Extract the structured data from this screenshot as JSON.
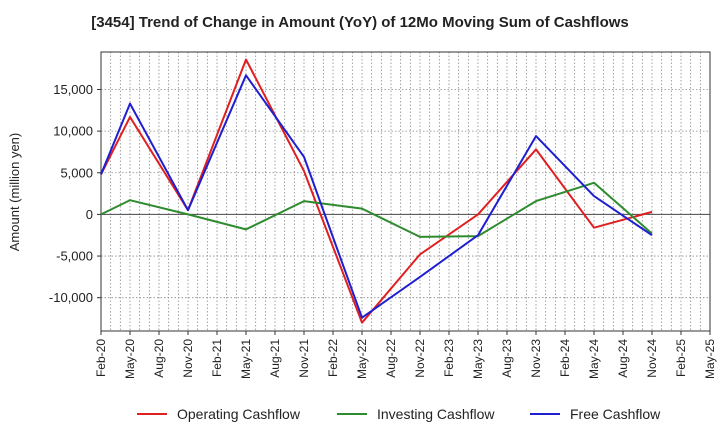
{
  "chart_data": {
    "type": "line",
    "title": "[3454]  Trend of Change in Amount (YoY) of 12Mo Moving Sum of Cashflows",
    "ylabel": "Amount (million yen)",
    "xlabel": "",
    "ylim": [
      -14000,
      19500
    ],
    "yticks": [
      -10000,
      -5000,
      0,
      5000,
      10000,
      15000
    ],
    "ytick_labels": [
      "-10,000",
      "-5,000",
      "0",
      "5,000",
      "10,000",
      "15,000"
    ],
    "categories": [
      "Feb-20",
      "May-20",
      "Aug-20",
      "Nov-20",
      "Feb-21",
      "May-21",
      "Aug-21",
      "Nov-21",
      "Feb-22",
      "May-22",
      "Aug-22",
      "Nov-22",
      "Feb-23",
      "May-23",
      "Aug-23",
      "Nov-23",
      "Feb-24",
      "May-24",
      "Aug-24",
      "Nov-24",
      "Feb-25",
      "May-25"
    ],
    "grid": true,
    "legend_position": "bottom",
    "series": [
      {
        "name": "Operating Cashflow",
        "color": "#e02020",
        "values": [
          4800,
          11700,
          null,
          500,
          null,
          18600,
          null,
          5200,
          null,
          -13000,
          null,
          -4800,
          null,
          0,
          null,
          7800,
          null,
          -1600,
          null,
          300,
          null,
          null
        ]
      },
      {
        "name": "Investing Cashflow",
        "color": "#2e8b2e",
        "values": [
          0,
          1700,
          null,
          0,
          null,
          -1800,
          null,
          1600,
          null,
          700,
          null,
          -2700,
          null,
          -2600,
          null,
          1600,
          null,
          3800,
          null,
          -2300,
          null,
          null
        ]
      },
      {
        "name": "Free Cashflow",
        "color": "#1f1fd0",
        "values": [
          4800,
          13300,
          null,
          500,
          null,
          16700,
          null,
          6900,
          null,
          -12400,
          null,
          -7500,
          null,
          -2500,
          null,
          9400,
          null,
          2200,
          null,
          -2500,
          null,
          null
        ]
      }
    ]
  }
}
